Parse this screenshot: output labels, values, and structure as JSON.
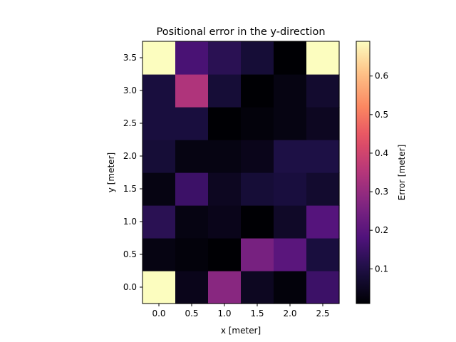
{
  "chart_data": {
    "type": "heatmap",
    "title": "Positional error in the y-direction",
    "xlabel": "x [meter]",
    "ylabel": "y [meter]",
    "colorbar_label": "Error [meter]",
    "colormap": "magma",
    "x_tick_labels": [
      "0.0",
      "0.5",
      "1.0",
      "1.5",
      "2.0",
      "2.5"
    ],
    "y_tick_labels": [
      "0.0",
      "0.5",
      "1.0",
      "1.5",
      "2.0",
      "2.5",
      "3.0",
      "3.5"
    ],
    "colorbar_tick_labels": [
      "0.1",
      "0.2",
      "0.3",
      "0.4",
      "0.5",
      "0.6"
    ],
    "x_centers": [
      0.0,
      0.5,
      1.0,
      1.5,
      2.0,
      2.5
    ],
    "y_centers": [
      0.0,
      0.5,
      1.0,
      1.5,
      2.0,
      2.5,
      3.0,
      3.5
    ],
    "xlim": [
      -0.25,
      2.75
    ],
    "ylim": [
      -0.25,
      3.75
    ],
    "vmin": 0.01,
    "vmax": 0.69,
    "grid": false,
    "values": [
      [
        0.69,
        0.04,
        0.28,
        0.05,
        0.02,
        0.15
      ],
      [
        0.03,
        0.02,
        0.01,
        0.25,
        0.2,
        0.09
      ],
      [
        0.12,
        0.03,
        0.04,
        0.01,
        0.06,
        0.19
      ],
      [
        0.03,
        0.15,
        0.05,
        0.08,
        0.09,
        0.07
      ],
      [
        0.08,
        0.03,
        0.03,
        0.04,
        0.1,
        0.1
      ],
      [
        0.09,
        0.09,
        0.01,
        0.02,
        0.03,
        0.05
      ],
      [
        0.09,
        0.34,
        0.08,
        0.01,
        0.03,
        0.07
      ],
      [
        0.69,
        0.17,
        0.12,
        0.08,
        0.01,
        0.69
      ]
    ]
  }
}
